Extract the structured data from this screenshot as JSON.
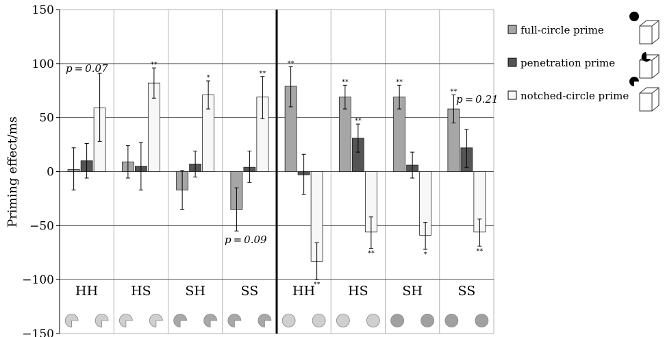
{
  "chart_data": {
    "type": "bar",
    "ylabel": "Priming effect/ms",
    "ylim": [
      -150,
      150
    ],
    "yticks": [
      150,
      100,
      50,
      0,
      -50,
      -100,
      -150
    ],
    "yticks_display": [
      "150",
      "100",
      "50",
      "0",
      "−50",
      "−100",
      "−150"
    ],
    "categories": [
      "HH",
      "HS",
      "SH",
      "SS",
      "HH",
      "HS",
      "SH",
      "SS"
    ],
    "grid": "on",
    "legend_position": "right",
    "divider_after_category": 4,
    "series": [
      {
        "name": "full-circle prime",
        "color": "#a6a6a6",
        "values": [
          2,
          9,
          -17,
          -35,
          79,
          69,
          69,
          58
        ],
        "err_low": [
          -17,
          -6,
          -35,
          -55,
          60,
          58,
          58,
          45
        ],
        "err_high": [
          22,
          24,
          1,
          -15,
          97,
          80,
          80,
          71
        ],
        "stars": [
          "",
          "",
          "",
          "",
          "**",
          "**",
          "**",
          "**"
        ]
      },
      {
        "name": "penetration prime",
        "color": "#545454",
        "values": [
          10,
          5,
          7,
          4,
          -3,
          31,
          6,
          22
        ],
        "err_low": [
          -6,
          -17,
          -5,
          -10,
          -21,
          18,
          -6,
          4
        ],
        "err_high": [
          26,
          27,
          19,
          19,
          16,
          44,
          18,
          39
        ],
        "stars": [
          "",
          "",
          "",
          "",
          "",
          "**",
          "",
          ""
        ]
      },
      {
        "name": "notched-circle prime",
        "color": "#f7f7f7",
        "values": [
          59,
          82,
          71,
          69,
          -83,
          -56,
          -59,
          -56
        ],
        "err_low": [
          28,
          68,
          58,
          49,
          -100,
          -71,
          -72,
          -69
        ],
        "err_high": [
          91,
          96,
          84,
          88,
          -66,
          -42,
          -47,
          -44
        ],
        "stars": [
          "",
          "**",
          "*",
          "**",
          "**",
          "**",
          "*",
          "**"
        ]
      }
    ],
    "annotations": [
      "p = 0.07",
      "p = 0.09",
      "p = 0.21"
    ]
  }
}
